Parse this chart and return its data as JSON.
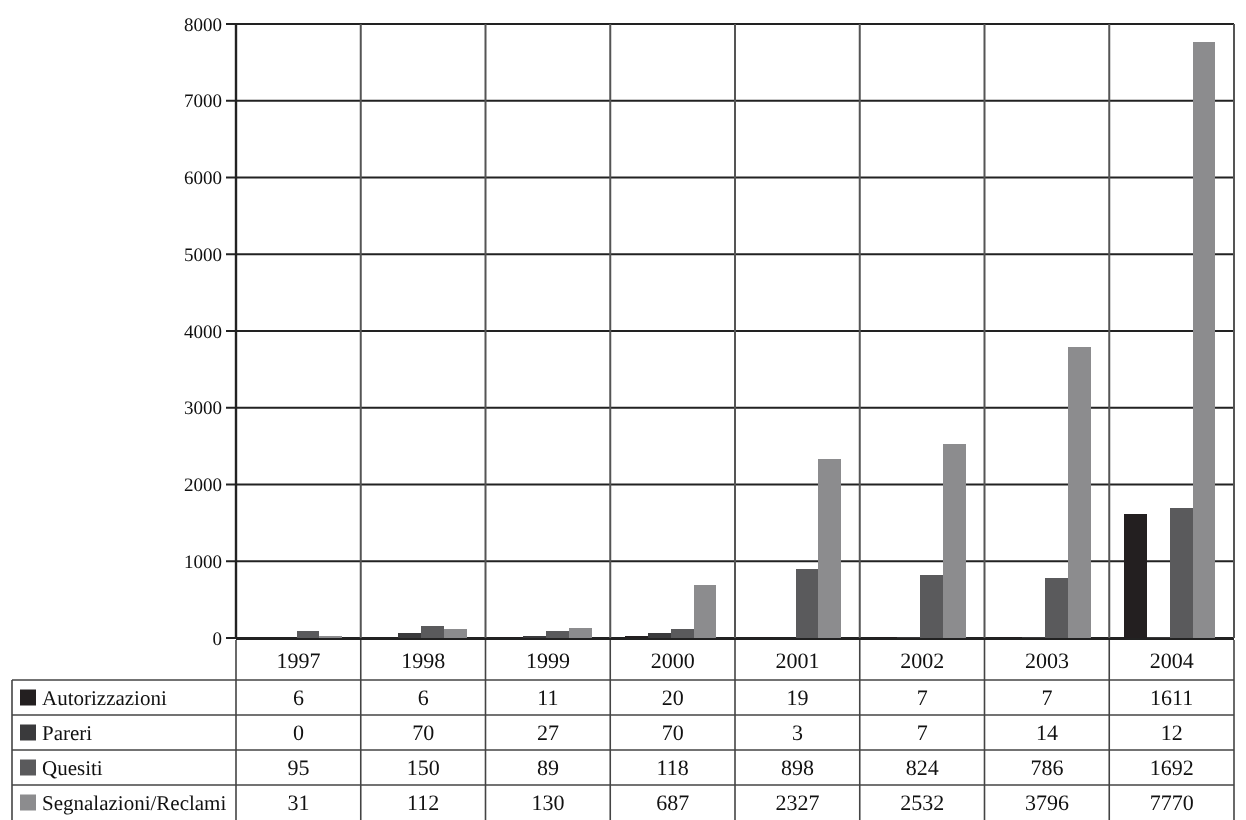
{
  "chart_data": {
    "type": "bar",
    "categories": [
      "1997",
      "1998",
      "1999",
      "2000",
      "2001",
      "2002",
      "2003",
      "2004"
    ],
    "series": [
      {
        "name": "Autorizzazioni",
        "color": "#231f20",
        "values": [
          6,
          6,
          11,
          20,
          19,
          7,
          7,
          1611
        ]
      },
      {
        "name": "Pareri",
        "color": "#3a3a3c",
        "values": [
          0,
          70,
          27,
          70,
          3,
          7,
          14,
          12
        ]
      },
      {
        "name": "Quesiti",
        "color": "#5a5a5c",
        "values": [
          95,
          150,
          89,
          118,
          898,
          824,
          786,
          1692
        ]
      },
      {
        "name": "Segnalazioni/Reclami",
        "color": "#8c8c8e",
        "values": [
          31,
          112,
          130,
          687,
          2327,
          2532,
          3796,
          7770
        ]
      }
    ],
    "ylim": [
      0,
      8000
    ],
    "yticks": [
      0,
      1000,
      2000,
      3000,
      4000,
      5000,
      6000,
      7000,
      8000
    ],
    "grid": true,
    "legend": "bottom",
    "data_labels": true
  }
}
